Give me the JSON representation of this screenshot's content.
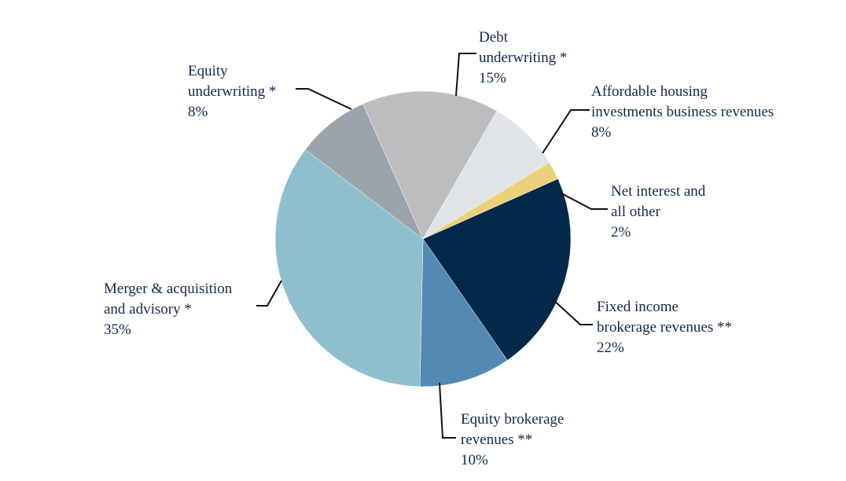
{
  "chart_data": {
    "type": "pie",
    "title": "",
    "slices": [
      {
        "label": [
          "Debt",
          "underwriting *"
        ],
        "value_text": "15%",
        "value": 15,
        "color": "#bcbdbe"
      },
      {
        "label": [
          "Affordable housing",
          "investments business revenues"
        ],
        "value_text": "8%",
        "value": 8,
        "color": "#e1e4e6"
      },
      {
        "label": [
          "Net interest and",
          "all other"
        ],
        "value_text": "2%",
        "value": 2,
        "color": "#ead27a"
      },
      {
        "label": [
          "Fixed income",
          "brokerage revenues **"
        ],
        "value_text": "22%",
        "value": 22,
        "color": "#02284a"
      },
      {
        "label": [
          "Equity brokerage",
          "revenues **"
        ],
        "value_text": "10%",
        "value": 10,
        "color": "#5289b5"
      },
      {
        "label": [
          "Merger & acquisition",
          "and advisory *"
        ],
        "value_text": "35%",
        "value": 35,
        "color": "#8dc0cc"
      },
      {
        "label": [
          "Equity",
          "underwriting *"
        ],
        "value_text": "8%",
        "value": 8,
        "color": "#9ba4ad"
      }
    ]
  }
}
